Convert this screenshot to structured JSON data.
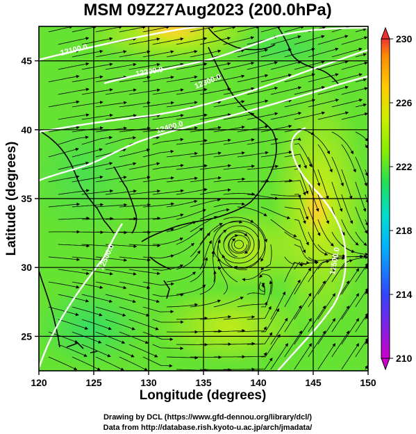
{
  "title": "MSM 09Z27Aug2023 (200.0hPa)",
  "axes": {
    "xlabel": "Longitude (degrees)",
    "ylabel": "Latitude  (degrees)",
    "lon_range": [
      120,
      150
    ],
    "lat_range": [
      22.5,
      47.5
    ],
    "lon_ticks": [
      "120",
      "125",
      "130",
      "135",
      "140",
      "145",
      "150"
    ],
    "lat_ticks": [
      "25",
      "30",
      "35",
      "40",
      "45"
    ],
    "grid": true
  },
  "colorbar": {
    "min": 210,
    "max": 230,
    "ticks": [
      "230",
      "226",
      "222",
      "218",
      "214",
      "210"
    ],
    "palette": [
      "#cc00cc",
      "#3344ff",
      "#00b4ff",
      "#00ddcc",
      "#22dd55",
      "#88ee00",
      "#ccee00",
      "#ffcc00",
      "#ff8800",
      "#ee3333"
    ]
  },
  "contours": {
    "color": "#ffffff",
    "labels": [
      "12100.0",
      "12200.0",
      "12300.0",
      "12400.0",
      "12500.0",
      "12500.0"
    ]
  },
  "colors": {
    "field_base": "#66e233",
    "field_warm": "#ccee22",
    "field_hot": "#ffcc33",
    "coast": "#000000",
    "streamline": "#000000"
  },
  "credits": {
    "line1": "Drawing by DCL (https://www.gfd-dennou.org/library/dcl/)",
    "line2": "Data from http://database.rish.kyoto-u.ac.jp/arch/jmadata/"
  }
}
